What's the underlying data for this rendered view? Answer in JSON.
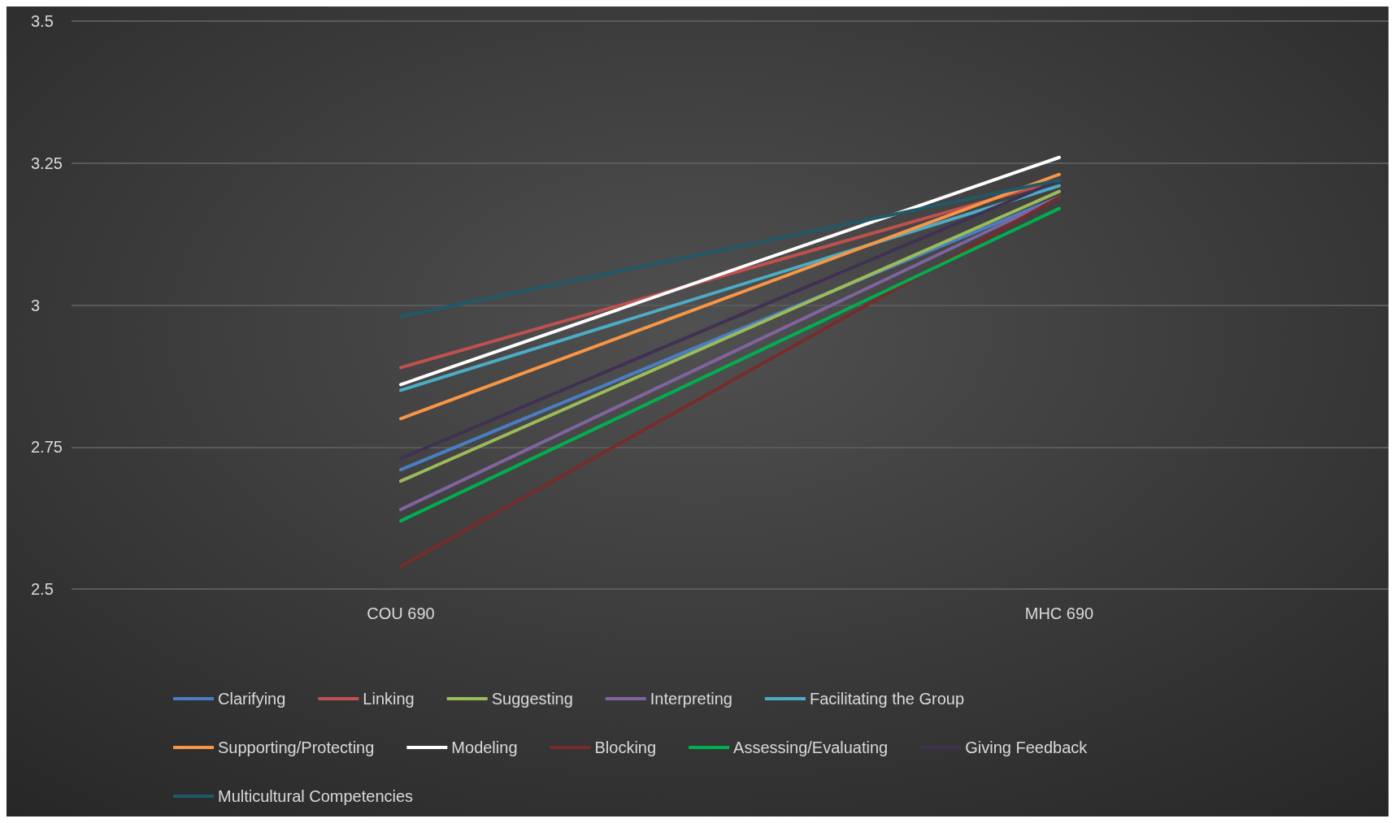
{
  "chart_data": {
    "type": "line",
    "categories": [
      "COU 690",
      "MHC 690"
    ],
    "ylim": [
      2.5,
      3.5
    ],
    "yticks": [
      2.5,
      2.75,
      3,
      3.25,
      3.5
    ],
    "grid": "y",
    "legend": "bottom",
    "marker": "none",
    "series": [
      {
        "name": "Clarifying",
        "color": "#4a7ec4",
        "values": [
          2.71,
          3.19
        ]
      },
      {
        "name": "Linking",
        "color": "#c0504d",
        "values": [
          2.89,
          3.22
        ]
      },
      {
        "name": "Suggesting",
        "color": "#9bbb59",
        "values": [
          2.69,
          3.2
        ]
      },
      {
        "name": "Interpreting",
        "color": "#8064a2",
        "values": [
          2.64,
          3.19
        ]
      },
      {
        "name": "Facilitating the Group",
        "color": "#4bacc6",
        "values": [
          2.85,
          3.21
        ]
      },
      {
        "name": "Supporting/Protecting",
        "color": "#f79646",
        "values": [
          2.8,
          3.23
        ]
      },
      {
        "name": "Modeling",
        "color": "#ffffff",
        "values": [
          2.86,
          3.26
        ]
      },
      {
        "name": "Blocking",
        "color": "#772c2a",
        "values": [
          2.54,
          3.19
        ]
      },
      {
        "name": "Assessing/Evaluating",
        "color": "#00b050",
        "values": [
          2.62,
          3.17
        ]
      },
      {
        "name": "Giving Feedback",
        "color": "#403152",
        "values": [
          2.73,
          3.22
        ]
      },
      {
        "name": "Multicultural Competencies",
        "color": "#215968",
        "values": [
          2.98,
          3.22
        ]
      }
    ]
  }
}
